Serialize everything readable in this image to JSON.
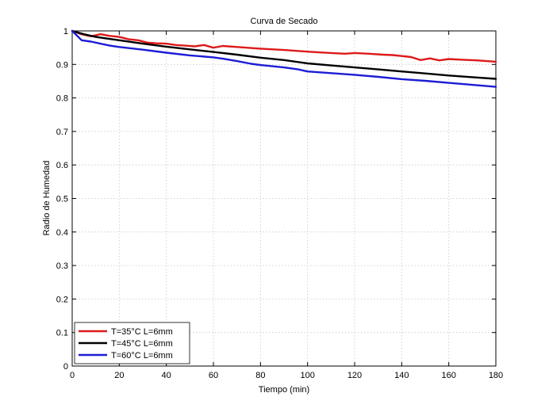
{
  "chart_data": {
    "type": "line",
    "title": "Curva de Secado",
    "xlabel": "Tiempo (min)",
    "ylabel": "Radio de Humedad",
    "xlim": [
      0,
      180
    ],
    "ylim": [
      0,
      1
    ],
    "xticks": [
      0,
      20,
      40,
      60,
      80,
      100,
      120,
      140,
      160,
      180
    ],
    "yticks": [
      0,
      0.1,
      0.2,
      0.3,
      0.4,
      0.5,
      0.6,
      0.7,
      0.8,
      0.9,
      1
    ],
    "ytick_labels": [
      "0",
      "0.1",
      "0.2",
      "0.3",
      "0.4",
      "0.5",
      "0.6",
      "0.7",
      "0.8",
      "0.9",
      "1"
    ],
    "grid": true,
    "legend_position": "bottom-left",
    "series": [
      {
        "name": "T=35°C L=6mm",
        "color": "#dd1a1a",
        "x": [
          0,
          4,
          8,
          12,
          16,
          20,
          24,
          28,
          32,
          36,
          40,
          44,
          48,
          52,
          56,
          60,
          64,
          70,
          80,
          90,
          100,
          110,
          116,
          120,
          126,
          132,
          136,
          140,
          144,
          148,
          152,
          156,
          160,
          166,
          172,
          180
        ],
        "y": [
          1.0,
          0.99,
          0.984,
          0.99,
          0.985,
          0.982,
          0.975,
          0.972,
          0.965,
          0.963,
          0.962,
          0.958,
          0.956,
          0.954,
          0.958,
          0.95,
          0.955,
          0.952,
          0.947,
          0.943,
          0.938,
          0.934,
          0.932,
          0.934,
          0.932,
          0.929,
          0.928,
          0.925,
          0.922,
          0.913,
          0.918,
          0.912,
          0.916,
          0.914,
          0.912,
          0.908
        ]
      },
      {
        "name": "T=45°C L=6mm",
        "color": "#000000",
        "x": [
          0,
          5,
          10,
          20,
          30,
          40,
          50,
          60,
          70,
          80,
          90,
          100,
          110,
          120,
          130,
          140,
          150,
          160,
          170,
          180
        ],
        "y": [
          1.0,
          0.99,
          0.982,
          0.972,
          0.962,
          0.953,
          0.945,
          0.937,
          0.929,
          0.92,
          0.913,
          0.903,
          0.897,
          0.891,
          0.885,
          0.879,
          0.873,
          0.867,
          0.862,
          0.857
        ]
      },
      {
        "name": "T=60°C L=6mm",
        "color": "#1c1cd6",
        "x": [
          0,
          4,
          8,
          12,
          16,
          20,
          30,
          40,
          50,
          60,
          64,
          70,
          76,
          80,
          90,
          96,
          100,
          110,
          120,
          130,
          140,
          150,
          160,
          170,
          180
        ],
        "y": [
          1.0,
          0.972,
          0.968,
          0.962,
          0.956,
          0.952,
          0.944,
          0.935,
          0.927,
          0.921,
          0.917,
          0.91,
          0.902,
          0.898,
          0.891,
          0.885,
          0.879,
          0.874,
          0.869,
          0.863,
          0.856,
          0.851,
          0.845,
          0.839,
          0.833
        ]
      }
    ]
  }
}
